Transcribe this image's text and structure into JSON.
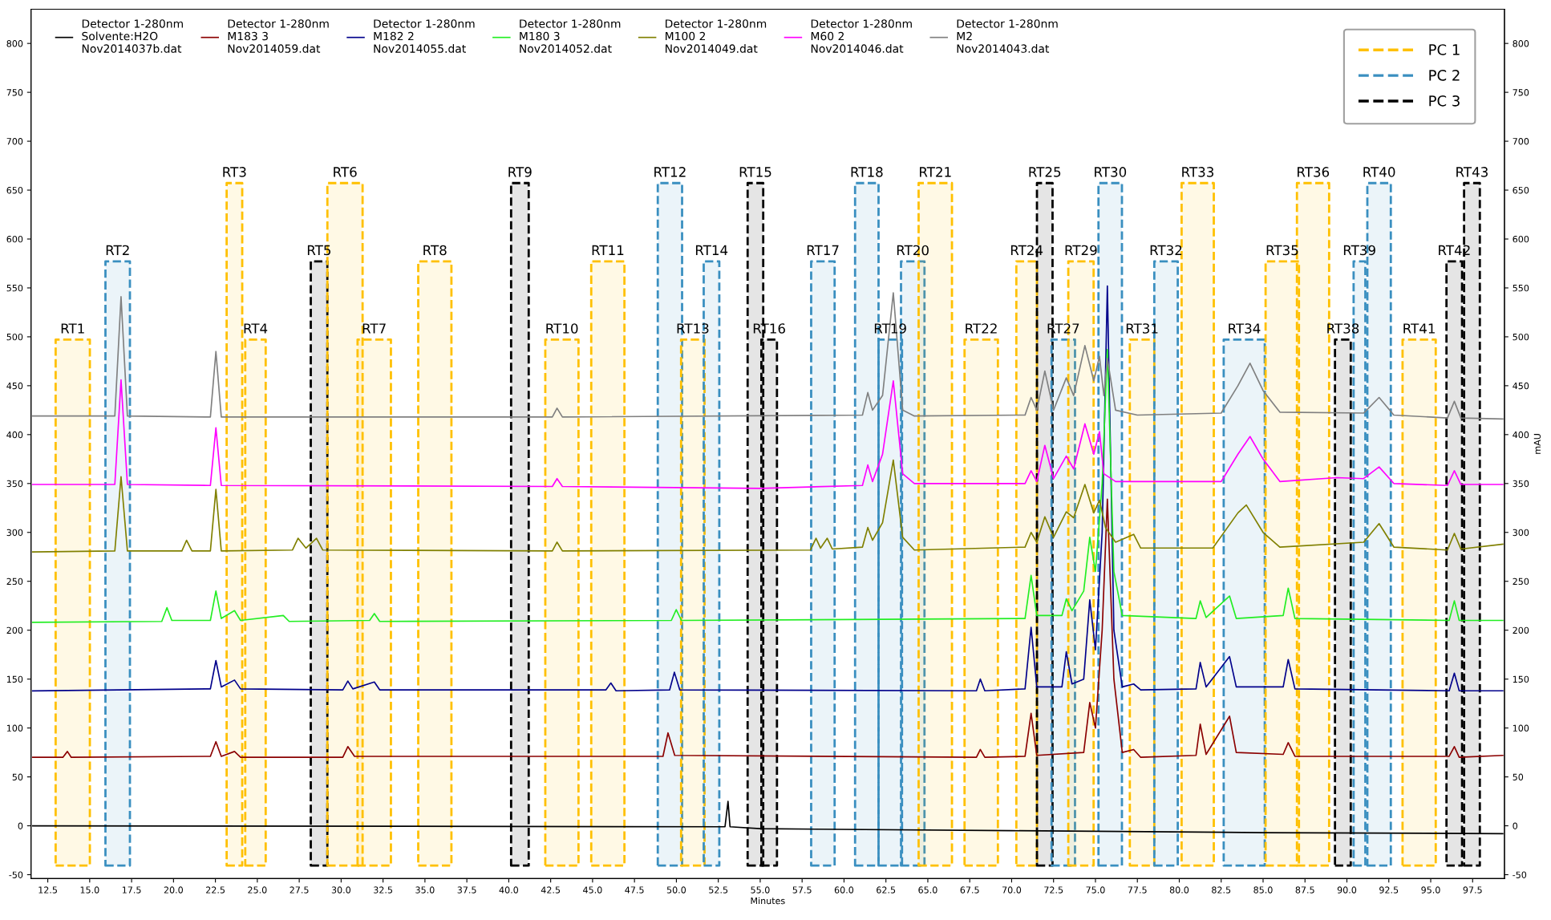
{
  "chart_data": {
    "type": "line",
    "xlabel": "Minutes",
    "y2label": "mAU",
    "xlim": [
      11.5,
      99.4
    ],
    "ylim": [
      -54,
      835
    ],
    "y2lim": [
      -54,
      835
    ],
    "xticks": [
      12.5,
      {
        "value": 15,
        "label": "15.0"
      },
      17.5,
      {
        "value": 20,
        "label": "20.0"
      },
      22.5,
      {
        "value": 25,
        "label": "25.0"
      },
      27.5,
      {
        "value": 30,
        "label": "30.0"
      },
      32.5,
      {
        "value": 35,
        "label": "35.0"
      },
      37.5,
      {
        "value": 40,
        "label": "40.0"
      },
      42.5,
      {
        "value": 45,
        "label": "45.0"
      },
      47.5,
      {
        "value": 50,
        "label": "50.0"
      },
      52.5,
      {
        "value": 55,
        "label": "55.0"
      },
      57.5,
      {
        "value": 60,
        "label": "60.0"
      },
      62.5,
      {
        "value": 65,
        "label": "65.0"
      },
      67.5,
      {
        "value": 70,
        "label": "70.0"
      },
      72.5,
      {
        "value": 75,
        "label": "75.0"
      },
      77.5,
      {
        "value": 80,
        "label": "80.0"
      },
      82.5,
      {
        "value": 85,
        "label": "85.0"
      },
      87.5,
      {
        "value": 90,
        "label": "90.0"
      },
      92.5,
      {
        "value": 95,
        "label": "95.0"
      },
      97.5
    ],
    "yticks": [
      -50,
      0,
      50,
      100,
      150,
      200,
      250,
      300,
      350,
      400,
      450,
      500,
      550,
      600,
      650,
      700,
      750,
      800
    ],
    "y2ticks": [
      -50,
      0,
      50,
      100,
      150,
      200,
      250,
      300,
      350,
      400,
      450,
      500,
      550,
      600,
      650,
      700,
      750,
      800
    ],
    "legend": "top left",
    "grid": false,
    "marker": "none",
    "series": [
      {
        "name": "Detector 1-280nm\nSolvente:H2O\nNov2014037b.dat",
        "color": "#000000",
        "x": [
          11.6,
          52.9,
          53.08,
          53.2,
          55.0,
          70,
          85,
          99.3
        ],
        "values": [
          0,
          -1,
          25,
          -1,
          -3,
          -5,
          -7,
          -8
        ]
      },
      {
        "name": "Detector 1-280nm\nM183 3\nNov2014059.dat",
        "color": "#8b0000",
        "x": [
          11.6,
          13.4,
          13.67,
          13.9,
          22.2,
          22.53,
          22.85,
          23.64,
          24.0,
          30.1,
          30.4,
          30.8,
          49.2,
          49.5,
          49.9,
          67.9,
          68.13,
          68.4,
          70.8,
          71.16,
          71.5,
          74.3,
          74.66,
          75.0,
          75.4,
          75.71,
          76.1,
          76.6,
          77.28,
          77.7,
          81.0,
          81.25,
          81.6,
          83.0,
          83.4,
          86.2,
          86.5,
          86.9,
          96.1,
          96.41,
          96.7,
          99.3
        ],
        "values": [
          70,
          70,
          76,
          70,
          71,
          86,
          71,
          76,
          70,
          70,
          81,
          71,
          71,
          95,
          72,
          70,
          78,
          70,
          71,
          115,
          72,
          75,
          126,
          100,
          200,
          334,
          150,
          75,
          78,
          70,
          72,
          104,
          73,
          112,
          75,
          73,
          85,
          71,
          71,
          81,
          70,
          72
        ]
      },
      {
        "name": "Detector 1-280nm\nM182 2\nNov2014055.dat",
        "color": "#00008b",
        "x": [
          11.6,
          22.2,
          22.53,
          22.85,
          23.64,
          24.0,
          30.1,
          30.4,
          30.7,
          31.98,
          32.3,
          45.8,
          46.09,
          46.4,
          49.6,
          49.88,
          50.2,
          67.9,
          68.13,
          68.4,
          70.8,
          71.16,
          71.5,
          73.0,
          73.26,
          73.6,
          74.3,
          74.66,
          75.0,
          75.4,
          75.71,
          76.1,
          76.6,
          77.28,
          77.7,
          81.0,
          81.25,
          81.6,
          83.0,
          83.4,
          86.2,
          86.5,
          86.9,
          96.1,
          96.41,
          96.7,
          99.3
        ],
        "values": [
          138,
          140,
          169,
          142,
          149,
          140,
          139,
          148,
          140,
          147,
          139,
          139,
          146,
          138,
          139,
          157,
          139,
          138,
          150,
          138,
          140,
          203,
          142,
          142,
          178,
          145,
          150,
          231,
          180,
          300,
          552,
          200,
          142,
          145,
          139,
          140,
          167,
          142,
          173,
          142,
          142,
          170,
          140,
          138,
          156,
          138,
          138
        ]
      },
      {
        "name": "Detector 1-280nm\nM180 3\nNov2014052.dat",
        "color": "#22ee22",
        "x": [
          11.6,
          19.3,
          19.61,
          19.9,
          22.2,
          22.53,
          22.85,
          23.64,
          24.0,
          26.55,
          26.9,
          31.7,
          31.98,
          32.3,
          49.7,
          49.99,
          50.3,
          70.8,
          71.16,
          71.5,
          73.0,
          73.26,
          73.6,
          74.3,
          74.66,
          75.0,
          75.4,
          75.71,
          76.1,
          76.6,
          81.0,
          81.25,
          81.6,
          83.0,
          83.4,
          86.2,
          86.5,
          86.9,
          96.1,
          96.41,
          96.7,
          99.3
        ],
        "values": [
          208,
          209,
          223,
          210,
          210,
          240,
          212,
          220,
          210,
          215,
          209,
          210,
          217,
          209,
          210,
          221,
          210,
          212,
          256,
          215,
          215,
          232,
          220,
          240,
          295,
          260,
          350,
          487,
          260,
          215,
          212,
          230,
          213,
          235,
          212,
          215,
          243,
          212,
          210,
          230,
          210,
          210
        ]
      },
      {
        "name": "Detector 1-280nm\nM100 2\nNov2014049.dat",
        "color": "#808000",
        "x": [
          11.6,
          16.5,
          16.87,
          17.25,
          20.5,
          20.78,
          21.1,
          22.2,
          22.53,
          22.85,
          27.1,
          27.43,
          27.9,
          28.53,
          28.9,
          42.6,
          42.88,
          43.2,
          58.0,
          58.33,
          58.6,
          59.0,
          59.3,
          61.1,
          61.42,
          61.7,
          62.3,
          62.94,
          63.5,
          64.2,
          70.8,
          71.16,
          71.5,
          71.98,
          72.5,
          73.26,
          73.7,
          74.37,
          74.9,
          75.24,
          75.6,
          76.2,
          77.28,
          77.7,
          82.0,
          83.5,
          84.0,
          85.0,
          86.0,
          91.0,
          91.92,
          92.8,
          96.0,
          96.41,
          96.8,
          99.3
        ],
        "values": [
          280,
          281,
          357,
          281,
          281,
          292,
          281,
          281,
          344,
          281,
          282,
          294,
          284,
          294,
          282,
          281,
          290,
          281,
          282,
          294,
          284,
          294,
          283,
          285,
          305,
          292,
          310,
          374,
          295,
          282,
          285,
          300,
          290,
          316,
          295,
          321,
          315,
          349,
          320,
          333,
          305,
          290,
          298,
          284,
          284,
          320,
          328,
          300,
          285,
          290,
          309,
          285,
          282,
          299,
          283,
          288
        ]
      },
      {
        "name": "Detector 1-280nm\nM60 2\nNov2014046.dat",
        "color": "#ff00ff",
        "x": [
          11.6,
          16.5,
          16.87,
          17.25,
          22.2,
          22.53,
          22.85,
          42.6,
          42.88,
          43.2,
          55,
          61.1,
          61.42,
          61.7,
          62.3,
          62.94,
          63.5,
          64.2,
          70.8,
          71.16,
          71.5,
          71.98,
          72.5,
          73.26,
          73.7,
          74.37,
          74.9,
          75.24,
          75.5,
          76.2,
          82.5,
          83.5,
          84.22,
          85.0,
          86.0,
          89.4,
          91.0,
          91.92,
          92.8,
          96.0,
          96.41,
          96.8,
          99.3
        ],
        "values": [
          349,
          349,
          456,
          349,
          348,
          407,
          348,
          347,
          355,
          347,
          345,
          348,
          369,
          352,
          380,
          455,
          360,
          350,
          350,
          363,
          352,
          389,
          355,
          378,
          365,
          411,
          380,
          403,
          360,
          352,
          352,
          380,
          398,
          375,
          352,
          356,
          355,
          367,
          350,
          348,
          363,
          349,
          349
        ]
      },
      {
        "name": "Detector 1-280nm\nM2\nNov2014043.dat",
        "color": "#808080",
        "x": [
          11.6,
          16.5,
          16.87,
          17.25,
          22.2,
          22.53,
          22.85,
          42.6,
          42.88,
          43.2,
          61.1,
          61.42,
          61.7,
          62.3,
          62.94,
          63.5,
          64.2,
          70.8,
          71.16,
          71.5,
          71.98,
          72.5,
          73.26,
          73.7,
          74.37,
          74.9,
          75.24,
          75.5,
          75.71,
          76.2,
          77.5,
          82.5,
          83.5,
          84.22,
          85.0,
          86.0,
          91.0,
          91.92,
          92.8,
          96.0,
          96.41,
          96.8,
          99.3
        ],
        "values": [
          419,
          419,
          541,
          419,
          418,
          485,
          418,
          418,
          427,
          418,
          420,
          443,
          425,
          440,
          545,
          425,
          419,
          420,
          438,
          425,
          465,
          425,
          458,
          440,
          491,
          455,
          480,
          440,
          478,
          425,
          420,
          422,
          450,
          473,
          445,
          423,
          422,
          438,
          420,
          417,
          434,
          417,
          416
        ]
      }
    ],
    "bands": [
      {
        "axis": "x",
        "from": 12.97,
        "to": 15.01,
        "label": "RT1",
        "color": "#ffc000"
      },
      {
        "axis": "x",
        "from": 15.94,
        "to": 17.4,
        "label": "RT2",
        "color": "#3a8fc0"
      },
      {
        "axis": "x",
        "from": 23.17,
        "to": 24.1,
        "label": "RT3",
        "color": "#ffc000"
      },
      {
        "axis": "x",
        "from": 24.28,
        "to": 25.5,
        "label": "RT4",
        "color": "#ffc000"
      },
      {
        "axis": "x",
        "from": 28.19,
        "to": 29.18,
        "label": "RT5",
        "color": "#000000"
      },
      {
        "axis": "x",
        "from": 29.18,
        "to": 31.28,
        "label": "RT6",
        "color": "#ffc000"
      },
      {
        "axis": "x",
        "from": 30.98,
        "to": 32.97,
        "label": "RT7",
        "color": "#ffc000"
      },
      {
        "axis": "x",
        "from": 34.6,
        "to": 36.58,
        "label": "RT8",
        "color": "#ffc000"
      },
      {
        "axis": "x",
        "from": 40.14,
        "to": 41.19,
        "label": "RT9",
        "color": "#000000"
      },
      {
        "axis": "x",
        "from": 42.18,
        "to": 44.16,
        "label": "RT10",
        "color": "#ffc000"
      },
      {
        "axis": "x",
        "from": 44.92,
        "to": 46.9,
        "label": "RT11",
        "color": "#ffc000"
      },
      {
        "axis": "x",
        "from": 48.89,
        "to": 50.34,
        "label": "RT12",
        "color": "#3a8fc0"
      },
      {
        "axis": "x",
        "from": 50.28,
        "to": 51.68,
        "label": "RT13",
        "color": "#ffc000"
      },
      {
        "axis": "x",
        "from": 51.63,
        "to": 52.56,
        "label": "RT14",
        "color": "#3a8fc0"
      },
      {
        "axis": "x",
        "from": 54.25,
        "to": 55.18,
        "label": "RT15",
        "color": "#000000"
      },
      {
        "axis": "x",
        "from": 55.07,
        "to": 56.0,
        "label": "RT16",
        "color": "#000000"
      },
      {
        "axis": "x",
        "from": 58.04,
        "to": 59.44,
        "label": "RT17",
        "color": "#3a8fc0"
      },
      {
        "axis": "x",
        "from": 60.66,
        "to": 62.06,
        "label": "RT18",
        "color": "#3a8fc0"
      },
      {
        "axis": "x",
        "from": 62.06,
        "to": 63.46,
        "label": "RT19",
        "color": "#3a8fc0"
      },
      {
        "axis": "x",
        "from": 63.4,
        "to": 64.8,
        "label": "RT20",
        "color": "#3a8fc0"
      },
      {
        "axis": "x",
        "from": 64.45,
        "to": 66.44,
        "label": "RT21",
        "color": "#ffc000"
      },
      {
        "axis": "x",
        "from": 67.19,
        "to": 69.18,
        "label": "RT22",
        "color": "#ffc000"
      },
      {
        "axis": "x",
        "from": 70.28,
        "to": 71.51,
        "label": "RT24",
        "color": "#ffc000"
      },
      {
        "axis": "x",
        "from": 71.51,
        "to": 72.44,
        "label": "RT25",
        "color": "#000000"
      },
      {
        "axis": "x",
        "from": 72.38,
        "to": 73.78,
        "label": "RT27",
        "color": "#3a8fc0"
      },
      {
        "axis": "x",
        "from": 73.38,
        "to": 74.89,
        "label": "RT29",
        "color": "#ffc000"
      },
      {
        "axis": "x",
        "from": 75.18,
        "to": 76.58,
        "label": "RT30",
        "color": "#3a8fc0"
      },
      {
        "axis": "x",
        "from": 77.05,
        "to": 78.51,
        "label": "RT31",
        "color": "#ffc000"
      },
      {
        "axis": "x",
        "from": 78.51,
        "to": 79.91,
        "label": "RT32",
        "color": "#3a8fc0"
      },
      {
        "axis": "x",
        "from": 80.14,
        "to": 82.06,
        "label": "RT33",
        "color": "#ffc000"
      },
      {
        "axis": "x",
        "from": 82.65,
        "to": 85.1,
        "label": "RT34",
        "color": "#3a8fc0"
      },
      {
        "axis": "x",
        "from": 85.15,
        "to": 87.14,
        "label": "RT35",
        "color": "#ffc000"
      },
      {
        "axis": "x",
        "from": 87.02,
        "to": 88.94,
        "label": "RT36",
        "color": "#ffc000"
      },
      {
        "axis": "x",
        "from": 89.29,
        "to": 90.23,
        "label": "RT38",
        "color": "#000000"
      },
      {
        "axis": "x",
        "from": 90.4,
        "to": 91.1,
        "label": "RT39",
        "color": "#3a8fc0"
      },
      {
        "axis": "x",
        "from": 91.22,
        "to": 92.62,
        "label": "RT40",
        "color": "#3a8fc0"
      },
      {
        "axis": "x",
        "from": 93.32,
        "to": 95.3,
        "label": "RT41",
        "color": "#ffc000"
      },
      {
        "axis": "x",
        "from": 95.94,
        "to": 96.87,
        "label": "RT42",
        "color": "#000000"
      },
      {
        "axis": "x",
        "from": 96.99,
        "to": 97.93,
        "label": "RT43",
        "color": "#000000"
      }
    ],
    "annotations": [
      "PC 1",
      "PC 2",
      "PC 3"
    ]
  }
}
